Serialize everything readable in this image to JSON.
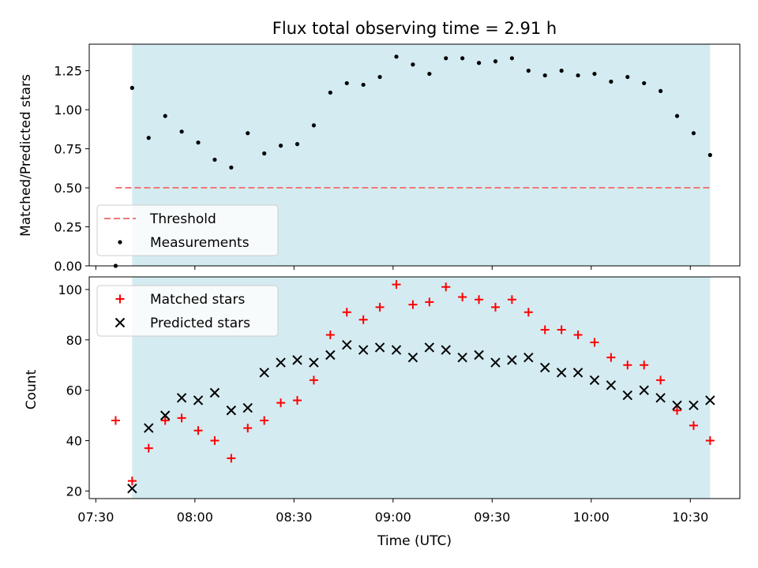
{
  "chart_data": [
    {
      "panel": "top",
      "type": "scatter",
      "title": "Flux total observing time = 2.91 h",
      "ylabel": "Matched/Predicted stars",
      "xlabel": "",
      "ylim": [
        0,
        1.42
      ],
      "yticks": [
        0,
        0.25,
        0.5,
        0.75,
        1.0,
        1.25
      ],
      "ytick_labels": [
        "0.00",
        "0.25",
        "0.50",
        "0.75",
        "1.00",
        "1.25"
      ],
      "shaded_interval": [
        "07:41",
        "10:36"
      ],
      "shaded_color": "#d4ebf1",
      "legend": {
        "location": "lower-left",
        "entries": [
          "Threshold",
          "Measurements"
        ]
      },
      "series": [
        {
          "name": "Threshold",
          "kind": "dashed-line",
          "color": "#f07878",
          "x": [
            "07:36",
            "10:36"
          ],
          "y": [
            0.5,
            0.5
          ]
        },
        {
          "name": "Measurements",
          "kind": "dot",
          "color": "#000000",
          "x": [
            "07:36",
            "07:41",
            "07:46",
            "07:51",
            "07:56",
            "08:01",
            "08:06",
            "08:11",
            "08:16",
            "08:21",
            "08:26",
            "08:31",
            "08:36",
            "08:41",
            "08:46",
            "08:51",
            "08:56",
            "09:01",
            "09:06",
            "09:11",
            "09:16",
            "09:21",
            "09:26",
            "09:31",
            "09:36",
            "09:41",
            "09:46",
            "09:51",
            "09:56",
            "10:01",
            "10:06",
            "10:11",
            "10:16",
            "10:21",
            "10:26",
            "10:31",
            "10:36"
          ],
          "y": [
            0.0,
            1.14,
            0.82,
            0.96,
            0.86,
            0.79,
            0.68,
            0.63,
            0.85,
            0.72,
            0.77,
            0.78,
            0.9,
            1.11,
            1.17,
            1.16,
            1.21,
            1.34,
            1.29,
            1.23,
            1.33,
            1.33,
            1.3,
            1.31,
            1.33,
            1.25,
            1.22,
            1.25,
            1.22,
            1.23,
            1.18,
            1.21,
            1.17,
            1.12,
            0.96,
            0.85,
            0.71
          ]
        }
      ]
    },
    {
      "panel": "bottom",
      "type": "scatter",
      "title": "",
      "ylabel": "Count",
      "xlabel": "Time (UTC)",
      "ylim": [
        17,
        105
      ],
      "yticks": [
        20,
        40,
        60,
        80,
        100
      ],
      "ytick_labels": [
        "20",
        "40",
        "60",
        "80",
        "100"
      ],
      "xticks": [
        "07:30",
        "08:00",
        "08:30",
        "09:00",
        "09:30",
        "10:00",
        "10:30"
      ],
      "xlim": [
        "07:28",
        "10:45"
      ],
      "shaded_interval": [
        "07:41",
        "10:36"
      ],
      "shaded_color": "#d4ebf1",
      "legend": {
        "location": "top-left",
        "entries": [
          "Matched stars",
          "Predicted stars"
        ]
      },
      "series": [
        {
          "name": "Matched stars",
          "kind": "plus",
          "color": "#ff0000",
          "x": [
            "07:36",
            "07:41",
            "07:46",
            "07:51",
            "07:56",
            "08:01",
            "08:06",
            "08:11",
            "08:16",
            "08:21",
            "08:26",
            "08:31",
            "08:36",
            "08:41",
            "08:46",
            "08:51",
            "08:56",
            "09:01",
            "09:06",
            "09:11",
            "09:16",
            "09:21",
            "09:26",
            "09:31",
            "09:36",
            "09:41",
            "09:46",
            "09:51",
            "09:56",
            "10:01",
            "10:06",
            "10:11",
            "10:16",
            "10:21",
            "10:26",
            "10:31",
            "10:36"
          ],
          "y": [
            48,
            24,
            37,
            48,
            49,
            44,
            40,
            33,
            45,
            48,
            55,
            56,
            64,
            82,
            91,
            88,
            93,
            102,
            94,
            95,
            101,
            97,
            96,
            93,
            96,
            91,
            84,
            84,
            82,
            79,
            73,
            70,
            70,
            64,
            52,
            46,
            40
          ]
        },
        {
          "name": "Predicted stars",
          "kind": "x",
          "color": "#000000",
          "x": [
            "07:41",
            "07:46",
            "07:51",
            "07:56",
            "08:01",
            "08:06",
            "08:11",
            "08:16",
            "08:21",
            "08:26",
            "08:31",
            "08:36",
            "08:41",
            "08:46",
            "08:51",
            "08:56",
            "09:01",
            "09:06",
            "09:11",
            "09:16",
            "09:21",
            "09:26",
            "09:31",
            "09:36",
            "09:41",
            "09:46",
            "09:51",
            "09:56",
            "10:01",
            "10:06",
            "10:11",
            "10:16",
            "10:21",
            "10:26",
            "10:31",
            "10:36"
          ],
          "y": [
            21,
            45,
            50,
            57,
            56,
            59,
            52,
            53,
            67,
            71,
            72,
            71,
            74,
            78,
            76,
            77,
            76,
            73,
            77,
            76,
            73,
            74,
            71,
            72,
            73,
            69,
            67,
            67,
            64,
            62,
            58,
            60,
            57,
            54,
            54,
            56
          ]
        }
      ]
    }
  ]
}
